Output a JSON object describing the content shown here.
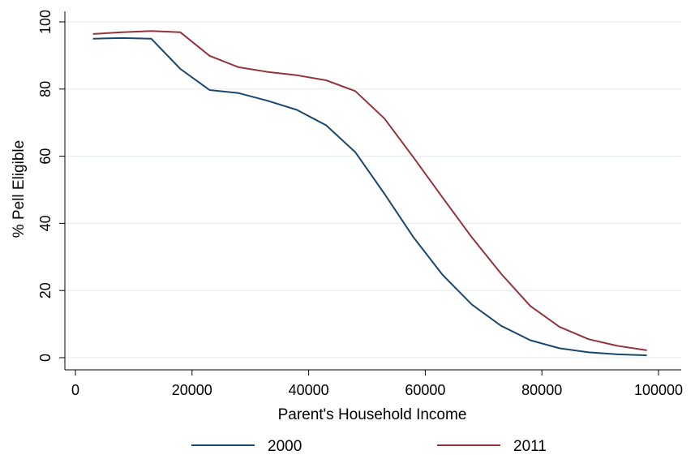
{
  "chart_data": {
    "type": "line",
    "title": "",
    "xlabel": "Parent's Household Income",
    "ylabel": "% Pell Eligible",
    "xlim": [
      0,
      100000
    ],
    "ylim": [
      0,
      100
    ],
    "x_ticks": [
      "0",
      "20000",
      "40000",
      "60000",
      "80000",
      "100000"
    ],
    "y_ticks": [
      "0",
      "20",
      "40",
      "60",
      "80",
      "100"
    ],
    "grid": "horizontal",
    "legend_position": "bottom",
    "x": [
      3000,
      8000,
      13000,
      18000,
      23000,
      28000,
      33000,
      38000,
      43000,
      48000,
      53000,
      58000,
      63000,
      68000,
      73000,
      78000,
      83000,
      88000,
      93000,
      98000
    ],
    "series": [
      {
        "name": "2000",
        "color": "#1a476f",
        "values": [
          95.0,
          95.2,
          95.0,
          86.0,
          79.7,
          78.8,
          76.5,
          73.8,
          69.2,
          61.2,
          48.8,
          35.8,
          24.6,
          15.8,
          9.5,
          5.2,
          2.8,
          1.6,
          1.0,
          0.7
        ]
      },
      {
        "name": "2011",
        "color": "#90353b",
        "values": [
          96.4,
          96.9,
          97.3,
          96.9,
          89.9,
          86.5,
          85.1,
          84.1,
          82.6,
          79.4,
          71.2,
          59.6,
          47.6,
          35.8,
          25.0,
          15.4,
          9.2,
          5.5,
          3.5,
          2.2
        ]
      }
    ]
  }
}
